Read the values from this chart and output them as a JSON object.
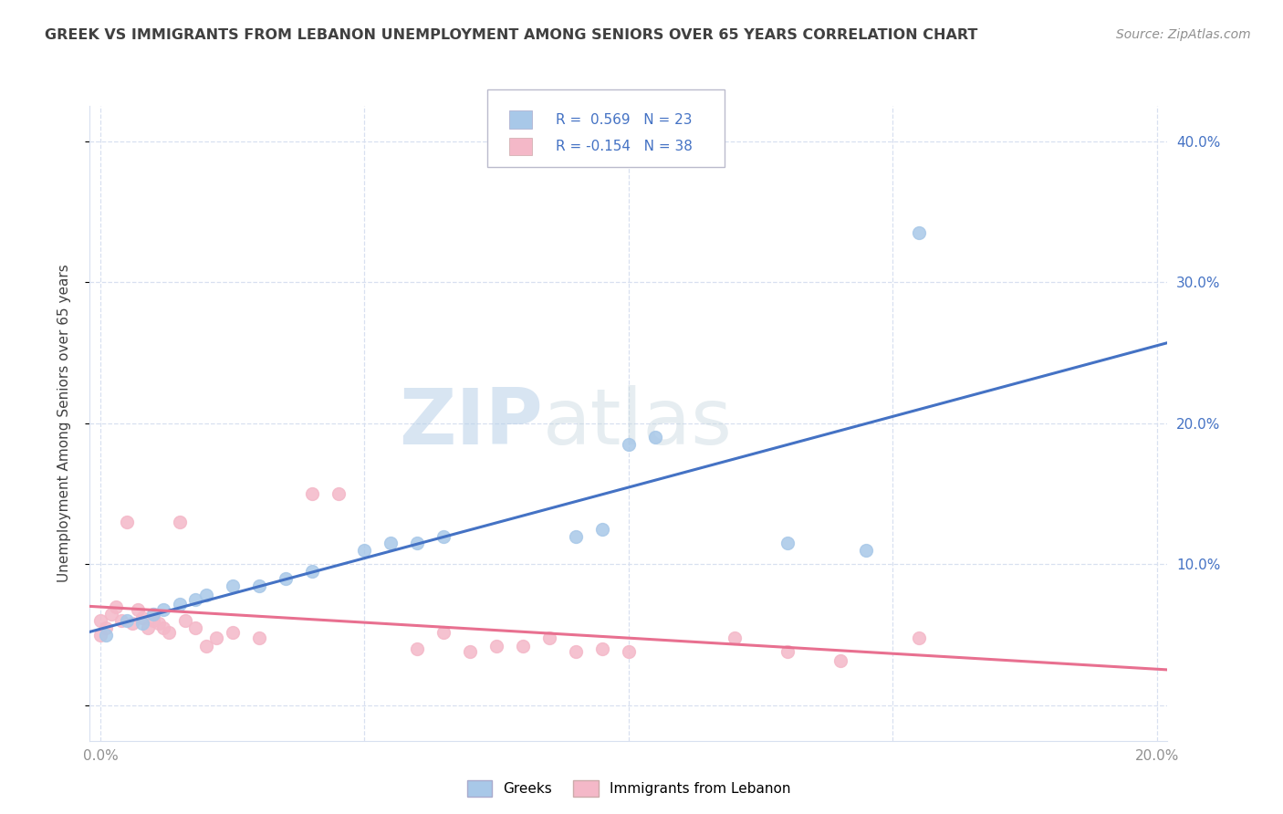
{
  "title": "GREEK VS IMMIGRANTS FROM LEBANON UNEMPLOYMENT AMONG SENIORS OVER 65 YEARS CORRELATION CHART",
  "source": "Source: ZipAtlas.com",
  "ylabel": "Unemployment Among Seniors over 65 years",
  "xlim": [
    -0.002,
    0.202
  ],
  "ylim": [
    -0.025,
    0.425
  ],
  "xticks": [
    0.0,
    0.05,
    0.1,
    0.15,
    0.2
  ],
  "xticklabels": [
    "0.0%",
    "",
    "",
    "",
    "20.0%"
  ],
  "yticks": [
    0.0,
    0.1,
    0.2,
    0.3,
    0.4
  ],
  "yticklabels_left": [
    "",
    "",
    "",
    "",
    ""
  ],
  "yticklabels_right": [
    "",
    "10.0%",
    "20.0%",
    "30.0%",
    "40.0%"
  ],
  "blue_R": 0.569,
  "blue_N": 23,
  "pink_R": -0.154,
  "pink_N": 38,
  "blue_color": "#a8c8e8",
  "blue_line_color": "#4472c4",
  "pink_color": "#f4b8c8",
  "pink_line_color": "#e87090",
  "blue_scatter_x": [
    0.001,
    0.005,
    0.008,
    0.01,
    0.012,
    0.015,
    0.018,
    0.02,
    0.025,
    0.03,
    0.035,
    0.04,
    0.05,
    0.055,
    0.06,
    0.065,
    0.09,
    0.095,
    0.1,
    0.105,
    0.13,
    0.145,
    0.155
  ],
  "blue_scatter_y": [
    0.05,
    0.06,
    0.058,
    0.065,
    0.068,
    0.072,
    0.075,
    0.078,
    0.085,
    0.085,
    0.09,
    0.095,
    0.11,
    0.115,
    0.115,
    0.12,
    0.12,
    0.125,
    0.185,
    0.19,
    0.115,
    0.11,
    0.335
  ],
  "pink_scatter_x": [
    0.0,
    0.0,
    0.001,
    0.002,
    0.003,
    0.004,
    0.005,
    0.006,
    0.007,
    0.008,
    0.009,
    0.01,
    0.01,
    0.011,
    0.012,
    0.013,
    0.015,
    0.016,
    0.018,
    0.02,
    0.022,
    0.025,
    0.03,
    0.04,
    0.045,
    0.06,
    0.065,
    0.07,
    0.075,
    0.08,
    0.085,
    0.09,
    0.095,
    0.1,
    0.12,
    0.13,
    0.14,
    0.155
  ],
  "pink_scatter_y": [
    0.05,
    0.06,
    0.055,
    0.065,
    0.07,
    0.06,
    0.13,
    0.058,
    0.068,
    0.062,
    0.055,
    0.065,
    0.06,
    0.058,
    0.055,
    0.052,
    0.13,
    0.06,
    0.055,
    0.042,
    0.048,
    0.052,
    0.048,
    0.15,
    0.15,
    0.04,
    0.052,
    0.038,
    0.042,
    0.042,
    0.048,
    0.038,
    0.04,
    0.038,
    0.048,
    0.038,
    0.032,
    0.048
  ],
  "watermark_zip": "ZIP",
  "watermark_atlas": "atlas",
  "background_color": "#ffffff",
  "grid_color": "#d8e0f0",
  "title_color": "#404040",
  "axis_color": "#909090"
}
